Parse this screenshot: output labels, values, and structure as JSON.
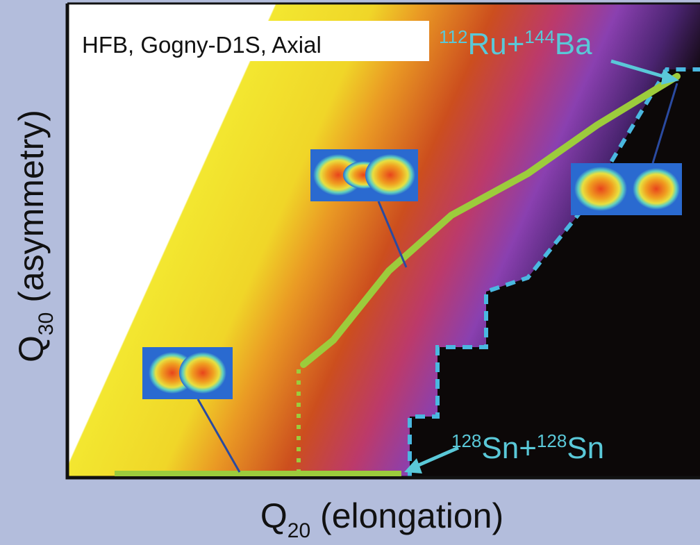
{
  "plot_title": "HFB, Gogny-D1S, Axial",
  "top_label": {
    "parts": [
      {
        "sup": "112",
        "text": "Ru+"
      },
      {
        "sup": "144",
        "text": "Ba"
      }
    ]
  },
  "bottom_label": {
    "parts": [
      {
        "sup": "128",
        "text": "Sn+"
      },
      {
        "sup": "128",
        "text": "Sn"
      }
    ]
  },
  "x_axis": {
    "symbol": "Q",
    "subscript": "20",
    "text": " (elongation)"
  },
  "y_axis": {
    "symbol": "Q",
    "subscript": "30",
    "text": " (asymmetry)"
  }
}
